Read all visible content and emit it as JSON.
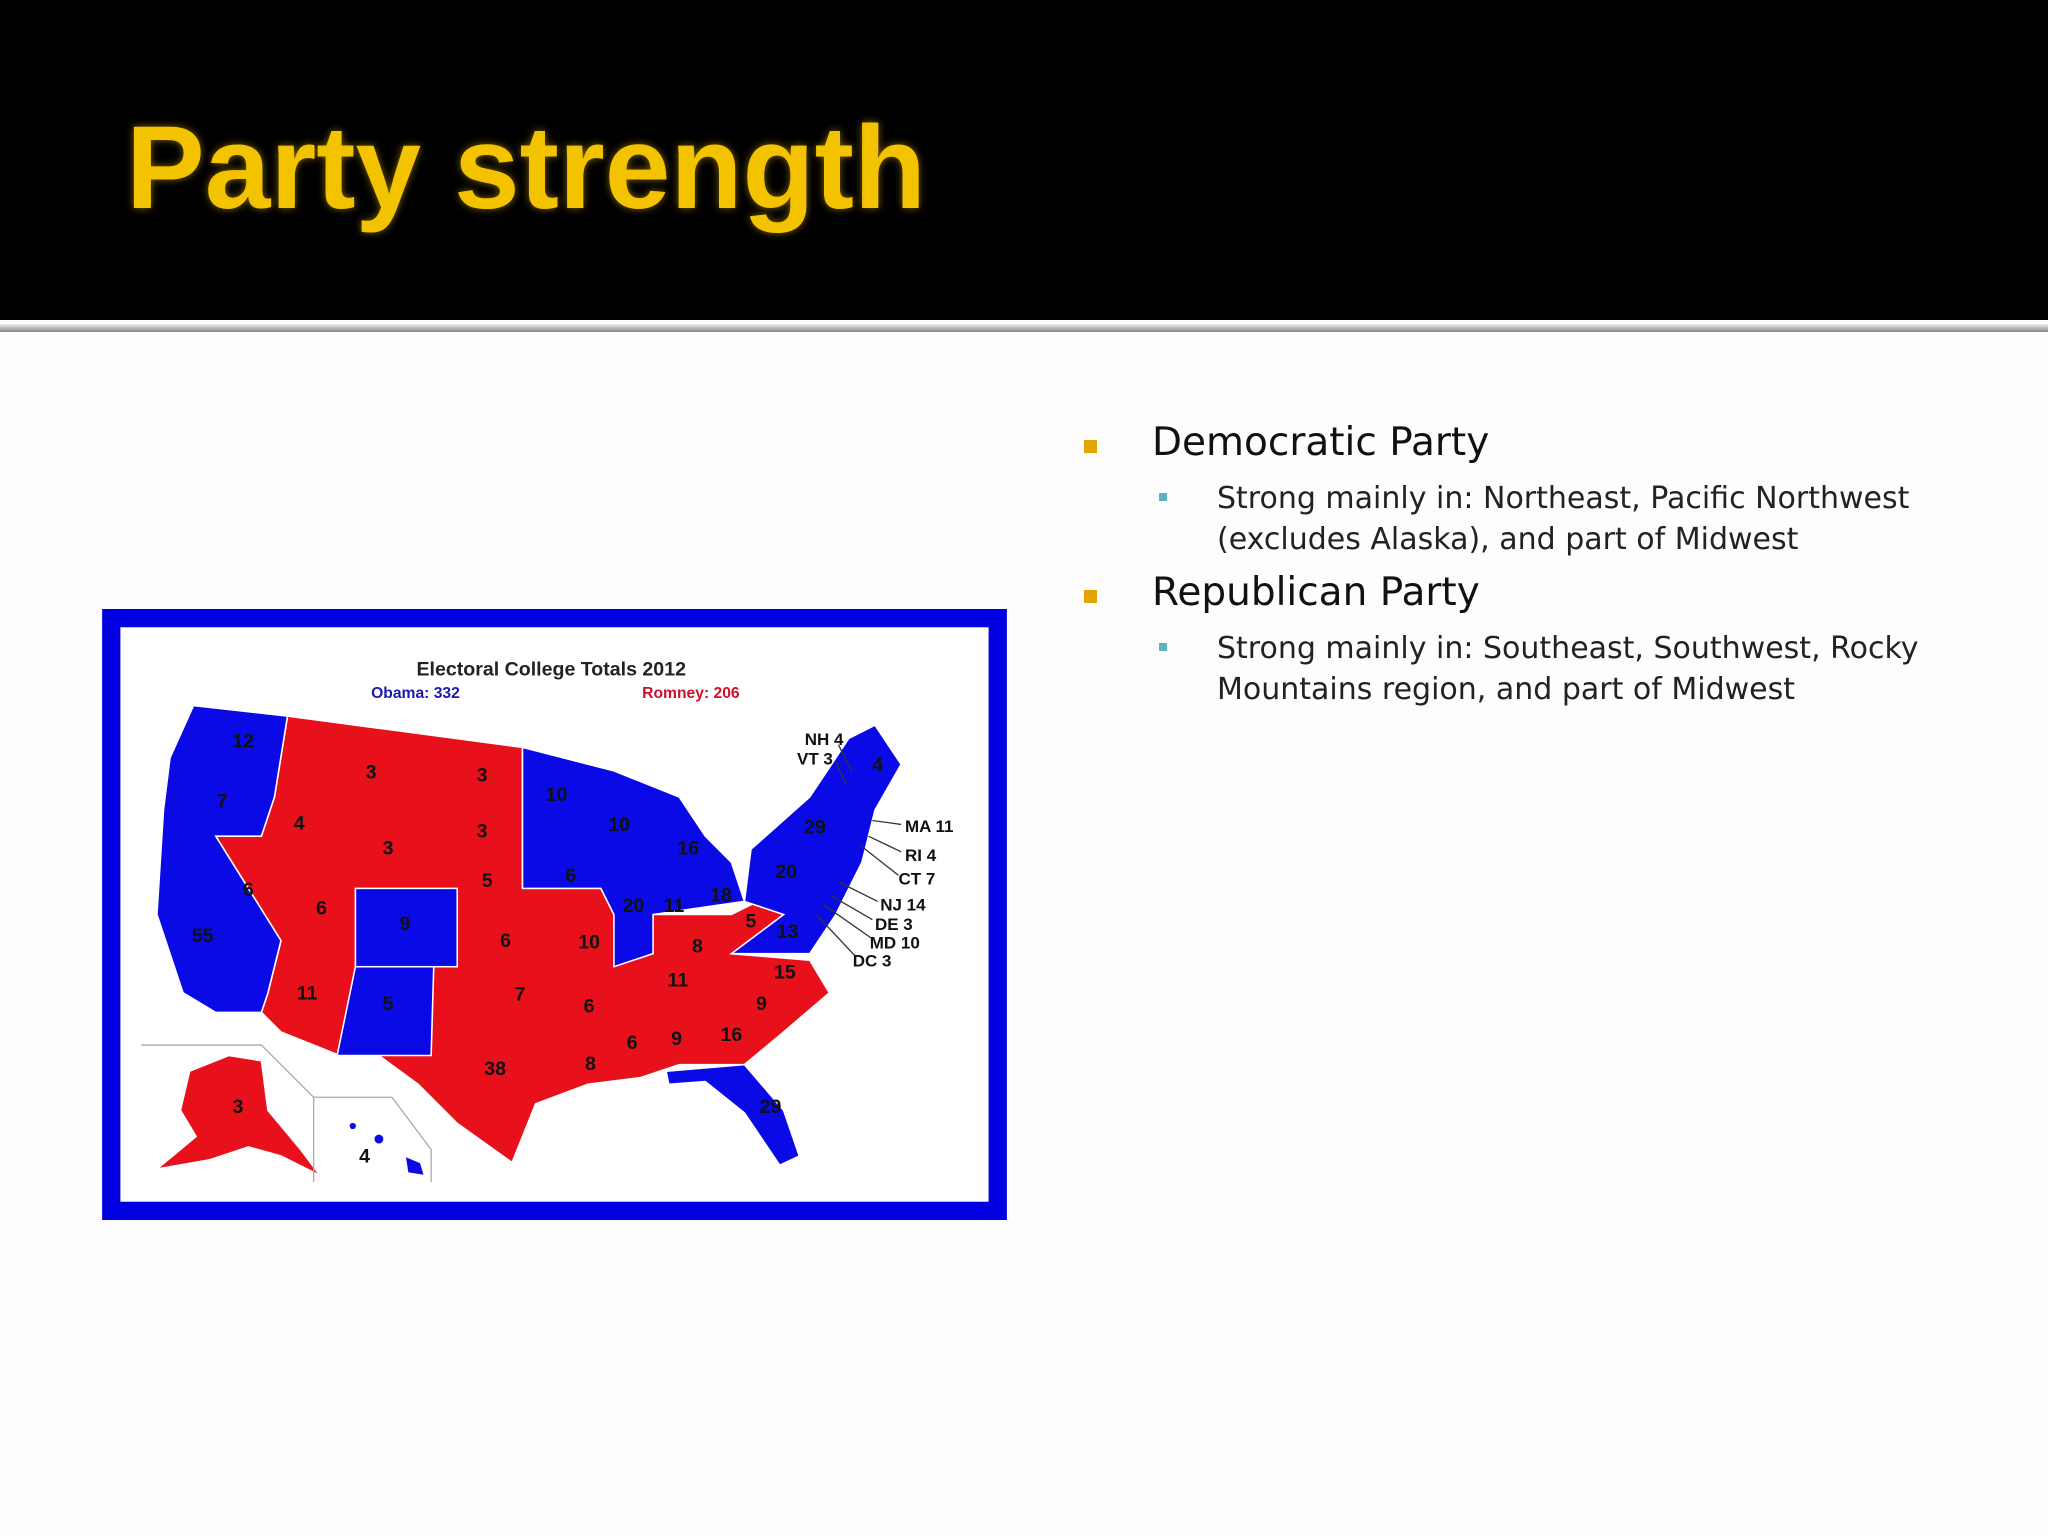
{
  "header": {
    "title": "Party strength"
  },
  "bullets": [
    {
      "text": "Democratic Party",
      "sub": [
        "Strong mainly in: Northeast, Pacific Northwest (excludes Alaska), and part of Midwest"
      ]
    },
    {
      "text": "Republican Party",
      "sub": [
        "Strong mainly in: Southeast, Southwest, Rocky Mountains region, and part of Midwest"
      ]
    }
  ],
  "map": {
    "title": "Electoral College Totals 2012",
    "obama": "Obama: 332",
    "romney": "Romney: 206",
    "labels": [
      "12",
      "7",
      "6",
      "55",
      "4",
      "3",
      "3",
      "6",
      "9",
      "11",
      "5",
      "3",
      "3",
      "5",
      "6",
      "7",
      "38",
      "10",
      "10",
      "6",
      "10",
      "6",
      "8",
      "16",
      "20",
      "11",
      "18",
      "8",
      "11",
      "6",
      "9",
      "16",
      "9",
      "15",
      "5",
      "13",
      "20",
      "29",
      "4",
      "29",
      "3",
      "4"
    ],
    "callouts": [
      "NH 4",
      "VT 3",
      "MA 11",
      "RI 4",
      "CT 7",
      "NJ 14",
      "DE 3",
      "MD 10",
      "DC 3"
    ]
  }
}
